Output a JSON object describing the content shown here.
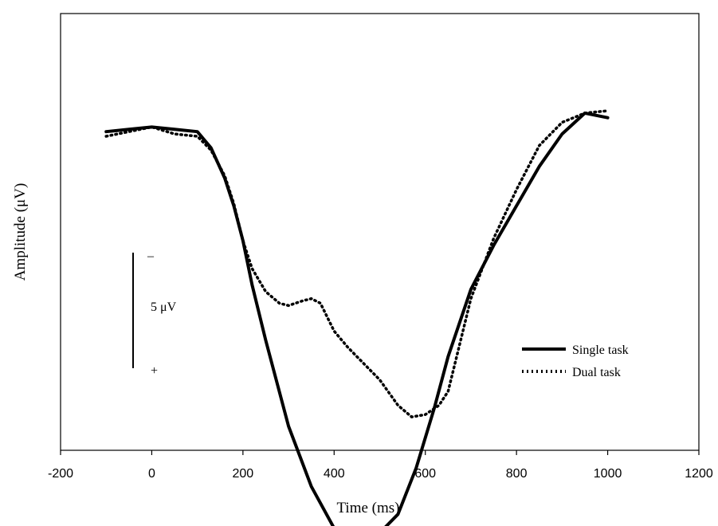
{
  "chart_data": {
    "type": "line",
    "title": "",
    "xlabel": "Time (ms)",
    "ylabel": "Amplitude (μV)",
    "xlim": [
      -200,
      1200
    ],
    "xticks": [
      "-200",
      "0",
      "200",
      "400",
      "600",
      "800",
      "1000",
      "1200"
    ],
    "yticks_shown": false,
    "grid": false,
    "legend_position": "right",
    "scale_bar": {
      "label": "5 μV",
      "top_symbol": "–",
      "bottom_symbol": "+",
      "value_uV": 5,
      "time_ms": -45,
      "top_value_uV": -5,
      "bottom_value_uV": 0
    },
    "series": [
      {
        "name": "Single task",
        "style": "solid",
        "x": [
          -100,
          -50,
          0,
          50,
          100,
          130,
          160,
          180,
          200,
          220,
          250,
          300,
          350,
          400,
          420,
          440,
          470,
          500,
          540,
          580,
          620,
          650,
          700,
          750,
          800,
          850,
          900,
          950,
          1000
        ],
        "y": [
          -10.2,
          -10.3,
          -10.4,
          -10.3,
          -10.2,
          -9.5,
          -8.2,
          -7.0,
          -5.5,
          -3.6,
          -1.2,
          2.5,
          5.1,
          6.9,
          7.3,
          7.6,
          7.5,
          7.1,
          6.3,
          4.3,
          1.7,
          -0.5,
          -3.4,
          -5.3,
          -7.0,
          -8.7,
          -10.1,
          -11.0,
          -10.8
        ]
      },
      {
        "name": "Dual task",
        "style": "dotted",
        "x": [
          -100,
          -50,
          0,
          50,
          100,
          130,
          160,
          180,
          200,
          220,
          250,
          280,
          300,
          330,
          350,
          370,
          400,
          430,
          470,
          500,
          540,
          570,
          600,
          630,
          650,
          700,
          750,
          800,
          850,
          900,
          950,
          1000
        ],
        "y": [
          -10.0,
          -10.2,
          -10.4,
          -10.1,
          -10.0,
          -9.4,
          -8.3,
          -7.1,
          -5.5,
          -4.3,
          -3.3,
          -2.8,
          -2.7,
          -2.9,
          -3.0,
          -2.8,
          -1.6,
          -0.9,
          -0.1,
          0.5,
          1.6,
          2.1,
          2.0,
          1.6,
          1.0,
          -3.0,
          -5.6,
          -7.7,
          -9.6,
          -10.6,
          -11.0,
          -11.1
        ]
      }
    ]
  }
}
